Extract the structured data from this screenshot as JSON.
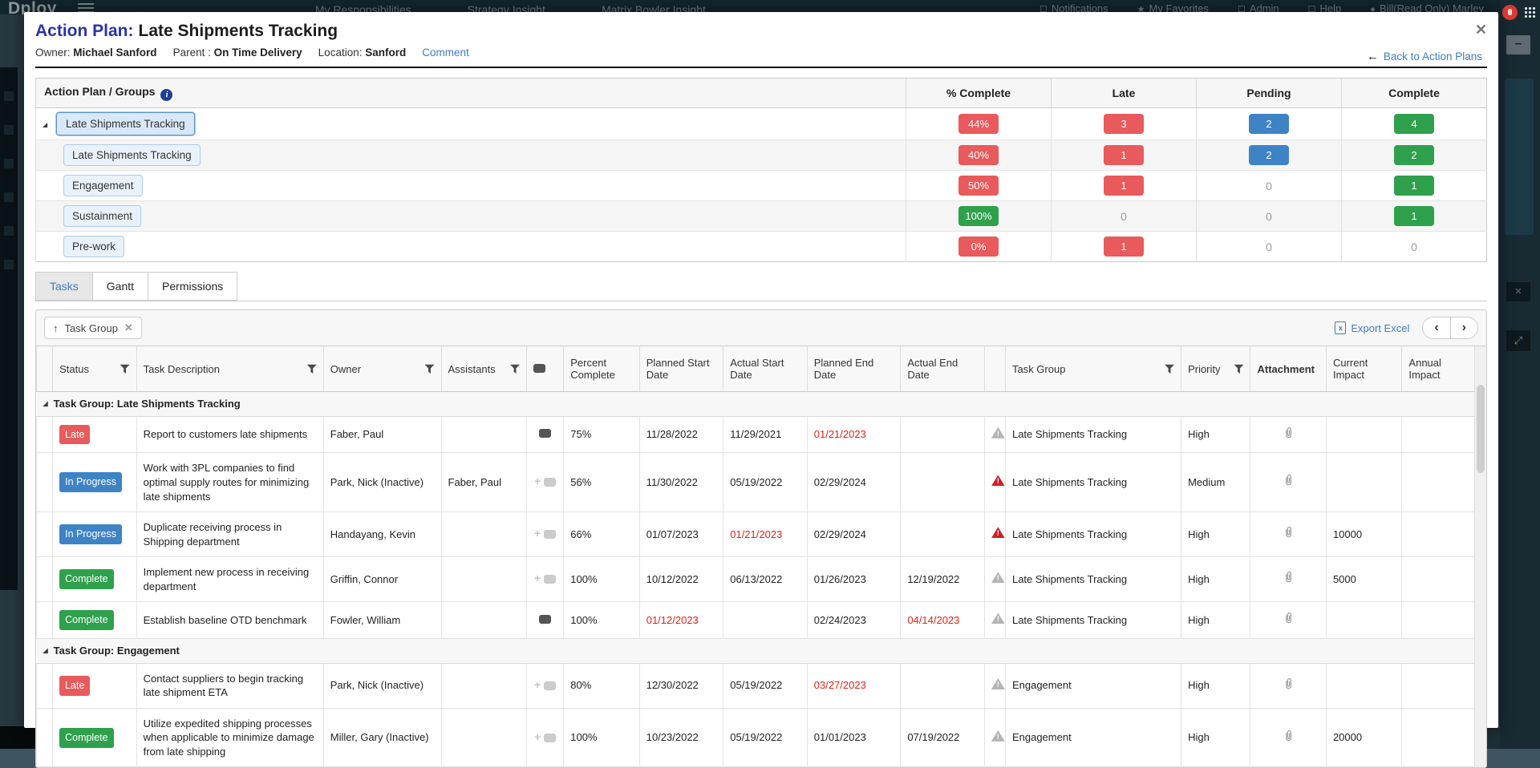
{
  "background": {
    "brand": "Dploy",
    "nav_left": [
      "My Responsibilities",
      "Strategy Insight",
      "Matrix Bowler Insight"
    ],
    "nav_right": [
      "Notifications",
      "My Favorites",
      "Admin",
      "Help",
      "Bill(Read Only) Marley"
    ]
  },
  "modal": {
    "title_prefix": "Action Plan:",
    "title_text": "Late Shipments Tracking",
    "close_glyph": "✕",
    "back_label": "Back to Action Plans",
    "meta": {
      "owner_label": "Owner:",
      "owner_value": "Michael Sanford",
      "parent_label": "Parent :",
      "parent_value": "On Time Delivery",
      "location_label": "Location:",
      "location_value": "Sanford",
      "comment_label": "Comment"
    }
  },
  "groups_table": {
    "title": "Action Plan / Groups",
    "columns": [
      "% Complete",
      "Late",
      "Pending",
      "Complete"
    ],
    "rows": [
      {
        "name": "Late Shipments Tracking",
        "level": 0,
        "selected": true,
        "expanded": true,
        "percent": {
          "text": "44%",
          "style": "red"
        },
        "late": {
          "text": "3",
          "style": "red"
        },
        "pending": {
          "text": "2",
          "style": "blue"
        },
        "complete": {
          "text": "4",
          "style": "green"
        }
      },
      {
        "name": "Late Shipments Tracking",
        "level": 1,
        "percent": {
          "text": "40%",
          "style": "red"
        },
        "late": {
          "text": "1",
          "style": "red"
        },
        "pending": {
          "text": "2",
          "style": "blue"
        },
        "complete": {
          "text": "2",
          "style": "green"
        }
      },
      {
        "name": "Engagement",
        "level": 1,
        "percent": {
          "text": "50%",
          "style": "red"
        },
        "late": {
          "text": "1",
          "style": "red"
        },
        "pending": {
          "text": "0"
        },
        "complete": {
          "text": "1",
          "style": "green"
        }
      },
      {
        "name": "Sustainment",
        "level": 1,
        "percent": {
          "text": "100%",
          "style": "green"
        },
        "late": {
          "text": "0"
        },
        "pending": {
          "text": "0"
        },
        "complete": {
          "text": "1",
          "style": "green"
        }
      },
      {
        "name": "Pre-work",
        "level": 1,
        "percent": {
          "text": "0%",
          "style": "red"
        },
        "late": {
          "text": "1",
          "style": "red"
        },
        "pending": {
          "text": "0"
        },
        "complete": {
          "text": "0"
        }
      }
    ]
  },
  "tabs": {
    "items": [
      "Tasks",
      "Gantt",
      "Permissions"
    ],
    "active": "Tasks"
  },
  "toolbar": {
    "chip_label": "Task Group",
    "export_label": "Export Excel"
  },
  "colors": {
    "red": "#e85a5b",
    "green": "#2fa04c",
    "blue": "#3e83c6",
    "link": "#3e7cc1",
    "title_blue": "#2834a4",
    "date_red": "#e32315"
  },
  "task_table": {
    "columns": [
      {
        "id": "expand",
        "label": ""
      },
      {
        "id": "status",
        "label": "Status",
        "filter": true
      },
      {
        "id": "description",
        "label": "Task Description",
        "filter": true
      },
      {
        "id": "owner",
        "label": "Owner",
        "filter": true
      },
      {
        "id": "assistants",
        "label": "Assistants",
        "filter": true
      },
      {
        "id": "comments",
        "label": "",
        "icon": "comment-icon"
      },
      {
        "id": "percent",
        "label": "Percent Complete"
      },
      {
        "id": "planned_start",
        "label": "Planned Start Date"
      },
      {
        "id": "actual_start",
        "label": "Actual Start Date"
      },
      {
        "id": "planned_end",
        "label": "Planned End Date"
      },
      {
        "id": "actual_end",
        "label": "Actual End Date"
      },
      {
        "id": "warning",
        "label": ""
      },
      {
        "id": "task_group",
        "label": "Task Group",
        "filter": true
      },
      {
        "id": "priority",
        "label": "Priority",
        "filter": true
      },
      {
        "id": "attachment",
        "label": "Attachment",
        "bold": true
      },
      {
        "id": "current_impact",
        "label": "Current Impact"
      },
      {
        "id": "annual_impact",
        "label": "Annual Impact"
      }
    ],
    "groups": [
      {
        "label": "Task Group: Late Shipments Tracking",
        "tasks": [
          {
            "status": "Late",
            "status_style": "red",
            "description": "Report to customers late shipments",
            "owner": "Faber, Paul",
            "assistants": "",
            "comment": "filled",
            "percent": "75%",
            "planned_start": {
              "text": "11/28/2022"
            },
            "actual_start": {
              "text": "11/29/2021"
            },
            "planned_end": {
              "text": "01/21/2023",
              "red": true
            },
            "actual_end": {
              "text": ""
            },
            "warning": "gray",
            "task_group": "Late Shipments Tracking",
            "priority": "High",
            "attachment": true,
            "current_impact": "",
            "annual_impact": ""
          },
          {
            "status": "In Progress",
            "status_style": "blue",
            "description": "Work with 3PL companies to find optimal supply routes for minimizing late shipments",
            "owner": "Park, Nick (Inactive)",
            "assistants": "Faber, Paul",
            "comment": "add",
            "percent": "56%",
            "planned_start": {
              "text": "11/30/2022"
            },
            "actual_start": {
              "text": "05/19/2022"
            },
            "planned_end": {
              "text": "02/29/2024"
            },
            "actual_end": {
              "text": ""
            },
            "warning": "red",
            "task_group": "Late Shipments Tracking",
            "priority": "Medium",
            "attachment": true,
            "current_impact": "",
            "annual_impact": ""
          },
          {
            "status": "In Progress",
            "status_style": "blue",
            "description": "Duplicate receiving process in Shipping department",
            "owner": "Handayang, Kevin",
            "assistants": "",
            "comment": "add",
            "percent": "66%",
            "planned_start": {
              "text": "01/07/2023"
            },
            "actual_start": {
              "text": "01/21/2023",
              "red": true
            },
            "planned_end": {
              "text": "02/29/2024"
            },
            "actual_end": {
              "text": ""
            },
            "warning": "red",
            "task_group": "Late Shipments Tracking",
            "priority": "High",
            "attachment": true,
            "current_impact": "10000",
            "annual_impact": ""
          },
          {
            "status": "Complete",
            "status_style": "green",
            "description": "Implement new process in receiving department",
            "owner": "Griffin, Connor",
            "assistants": "",
            "comment": "add",
            "percent": "100%",
            "planned_start": {
              "text": "10/12/2022"
            },
            "actual_start": {
              "text": "06/13/2022"
            },
            "planned_end": {
              "text": "01/26/2023"
            },
            "actual_end": {
              "text": "12/19/2022"
            },
            "warning": "gray",
            "task_group": "Late Shipments Tracking",
            "priority": "High",
            "attachment": true,
            "current_impact": "5000",
            "annual_impact": ""
          },
          {
            "status": "Complete",
            "status_style": "green",
            "description": "Establish baseline OTD benchmark",
            "owner": "Fowler, William",
            "assistants": "",
            "comment": "filled",
            "percent": "100%",
            "planned_start": {
              "text": "01/12/2023",
              "red": true
            },
            "actual_start": {
              "text": ""
            },
            "planned_end": {
              "text": "02/24/2023"
            },
            "actual_end": {
              "text": "04/14/2023",
              "red": true
            },
            "warning": "gray",
            "task_group": "Late Shipments Tracking",
            "priority": "High",
            "attachment": true,
            "current_impact": "",
            "annual_impact": ""
          }
        ]
      },
      {
        "label": "Task Group: Engagement",
        "tasks": [
          {
            "status": "Late",
            "status_style": "red",
            "description": "Contact suppliers to begin tracking late shipment ETA",
            "owner": "Park, Nick (Inactive)",
            "assistants": "",
            "comment": "add",
            "percent": "80%",
            "planned_start": {
              "text": "12/30/2022"
            },
            "actual_start": {
              "text": "05/19/2022"
            },
            "planned_end": {
              "text": "03/27/2023",
              "red": true
            },
            "actual_end": {
              "text": ""
            },
            "warning": "gray",
            "task_group": "Engagement",
            "priority": "High",
            "attachment": true,
            "current_impact": "",
            "annual_impact": ""
          },
          {
            "status": "Complete",
            "status_style": "green",
            "description": "Utilize expedited shipping processes when applicable to minimize damage from late shipping",
            "owner": "Miller, Gary (Inactive)",
            "assistants": "",
            "comment": "add",
            "percent": "100%",
            "planned_start": {
              "text": "10/23/2022"
            },
            "actual_start": {
              "text": "05/19/2022"
            },
            "planned_end": {
              "text": "01/01/2023"
            },
            "actual_end": {
              "text": "07/19/2022"
            },
            "warning": "gray",
            "task_group": "Engagement",
            "priority": "High",
            "attachment": true,
            "current_impact": "20000",
            "annual_impact": ""
          }
        ]
      }
    ]
  }
}
